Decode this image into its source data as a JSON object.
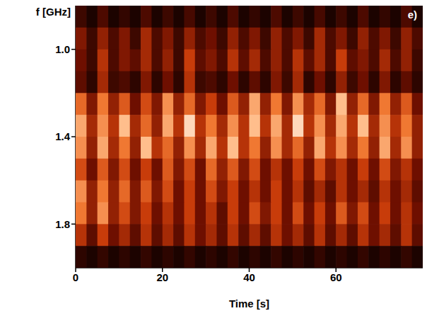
{
  "chart_data": {
    "type": "heatmap",
    "panel_label": "e)",
    "x_label": "Time [s]",
    "y_label": "f [GHz]",
    "xlim": [
      0,
      80
    ],
    "xticks": [
      0,
      20,
      40,
      60
    ],
    "ylim": [
      0.8,
      2.0
    ],
    "yticks": [
      {
        "value": 1,
        "label": "1.0"
      },
      1.4,
      1.8
    ],
    "zlim": [
      0,
      1
    ],
    "x": [
      1.25,
      3.75,
      6.25,
      8.75,
      11.25,
      13.75,
      16.25,
      18.75,
      21.25,
      23.75,
      26.25,
      28.75,
      31.25,
      33.75,
      36.25,
      38.75,
      41.25,
      43.75,
      46.25,
      48.75,
      51.25,
      53.75,
      56.25,
      58.75,
      61.25,
      63.75,
      66.25,
      68.75,
      71.25,
      73.75,
      76.25,
      78.75
    ],
    "y": [
      0.85,
      0.95,
      1.05,
      1.15,
      1.25,
      1.35,
      1.45,
      1.55,
      1.65,
      1.75,
      1.85,
      1.95
    ],
    "z": [
      [
        0.15,
        0.05,
        0.2,
        0.05,
        0.12,
        0.05,
        0.2,
        0.05,
        0.15,
        0.05,
        0.18,
        0.05,
        0.15,
        0.05,
        0.2,
        0.05,
        0.12,
        0.05,
        0.2,
        0.05,
        0.15,
        0.05,
        0.18,
        0.05,
        0.15,
        0.05,
        0.2,
        0.05,
        0.12,
        0.05,
        0.2,
        0.05
      ],
      [
        0.35,
        0.15,
        0.4,
        0.2,
        0.35,
        0.15,
        0.45,
        0.2,
        0.35,
        0.15,
        0.4,
        0.2,
        0.3,
        0.15,
        0.4,
        0.2,
        0.35,
        0.15,
        0.4,
        0.2,
        0.35,
        0.15,
        0.45,
        0.2,
        0.35,
        0.15,
        0.4,
        0.2,
        0.35,
        0.15,
        0.4,
        0.2
      ],
      [
        0.3,
        0.15,
        0.5,
        0.2,
        0.35,
        0.25,
        0.45,
        0.2,
        0.4,
        0.15,
        0.55,
        0.25,
        0.35,
        0.2,
        0.5,
        0.25,
        0.45,
        0.2,
        0.4,
        0.2,
        0.5,
        0.25,
        0.45,
        0.2,
        0.55,
        0.25,
        0.35,
        0.2,
        0.45,
        0.2,
        0.4,
        0.15
      ],
      [
        0.25,
        0.1,
        0.45,
        0.15,
        0.2,
        0.1,
        0.35,
        0.1,
        0.3,
        0.1,
        0.5,
        0.15,
        0.2,
        0.1,
        0.3,
        0.1,
        0.25,
        0.1,
        0.35,
        0.15,
        0.45,
        0.1,
        0.3,
        0.1,
        0.4,
        0.15,
        0.3,
        0.1,
        0.35,
        0.1,
        0.25,
        0.1
      ],
      [
        0.7,
        0.35,
        0.75,
        0.4,
        0.65,
        0.3,
        0.6,
        0.35,
        0.8,
        0.4,
        0.7,
        0.35,
        0.55,
        0.3,
        0.65,
        0.4,
        0.85,
        0.4,
        0.75,
        0.35,
        0.8,
        0.45,
        0.7,
        0.35,
        0.9,
        0.4,
        0.7,
        0.35,
        0.75,
        0.4,
        0.65,
        0.3
      ],
      [
        0.85,
        0.45,
        0.8,
        0.5,
        0.9,
        0.45,
        0.7,
        0.4,
        0.85,
        0.5,
        0.95,
        0.5,
        0.75,
        0.45,
        0.8,
        0.5,
        0.9,
        0.5,
        0.85,
        0.45,
        0.95,
        0.5,
        0.8,
        0.45,
        0.85,
        0.5,
        0.9,
        0.45,
        0.8,
        0.5,
        0.75,
        0.4
      ],
      [
        0.8,
        0.4,
        0.85,
        0.45,
        0.75,
        0.4,
        0.9,
        0.5,
        0.7,
        0.4,
        0.8,
        0.45,
        0.85,
        0.5,
        0.9,
        0.5,
        0.75,
        0.4,
        0.8,
        0.45,
        0.7,
        0.4,
        0.85,
        0.5,
        0.8,
        0.45,
        0.75,
        0.4,
        0.85,
        0.45,
        0.8,
        0.4
      ],
      [
        0.6,
        0.3,
        0.65,
        0.35,
        0.6,
        0.3,
        0.55,
        0.3,
        0.65,
        0.35,
        0.6,
        0.3,
        0.7,
        0.4,
        0.65,
        0.35,
        0.6,
        0.3,
        0.5,
        0.3,
        0.55,
        0.3,
        0.6,
        0.35,
        0.5,
        0.3,
        0.55,
        0.3,
        0.6,
        0.35,
        0.5,
        0.3
      ],
      [
        0.8,
        0.4,
        0.75,
        0.4,
        0.7,
        0.35,
        0.65,
        0.35,
        0.6,
        0.3,
        0.55,
        0.3,
        0.6,
        0.35,
        0.55,
        0.3,
        0.5,
        0.3,
        0.55,
        0.3,
        0.5,
        0.25,
        0.45,
        0.25,
        0.5,
        0.3,
        0.45,
        0.25,
        0.5,
        0.3,
        0.45,
        0.25
      ],
      [
        0.75,
        0.4,
        0.8,
        0.4,
        0.6,
        0.35,
        0.55,
        0.3,
        0.5,
        0.3,
        0.55,
        0.3,
        0.5,
        0.25,
        0.55,
        0.3,
        0.6,
        0.35,
        0.55,
        0.3,
        0.6,
        0.3,
        0.55,
        0.3,
        0.65,
        0.35,
        0.6,
        0.3,
        0.55,
        0.3,
        0.5,
        0.3
      ],
      [
        0.5,
        0.25,
        0.55,
        0.3,
        0.45,
        0.25,
        0.5,
        0.25,
        0.45,
        0.25,
        0.5,
        0.3,
        0.45,
        0.25,
        0.5,
        0.25,
        0.45,
        0.25,
        0.5,
        0.3,
        0.45,
        0.25,
        0.5,
        0.25,
        0.45,
        0.25,
        0.5,
        0.3,
        0.45,
        0.25,
        0.5,
        0.25
      ],
      [
        0.1,
        0.05,
        0.12,
        0.05,
        0.1,
        0.05,
        0.12,
        0.05,
        0.1,
        0.05,
        0.12,
        0.05,
        0.1,
        0.05,
        0.12,
        0.05,
        0.1,
        0.05,
        0.12,
        0.05,
        0.1,
        0.05,
        0.12,
        0.05,
        0.1,
        0.05,
        0.12,
        0.05,
        0.1,
        0.05,
        0.12,
        0.05
      ]
    ]
  }
}
